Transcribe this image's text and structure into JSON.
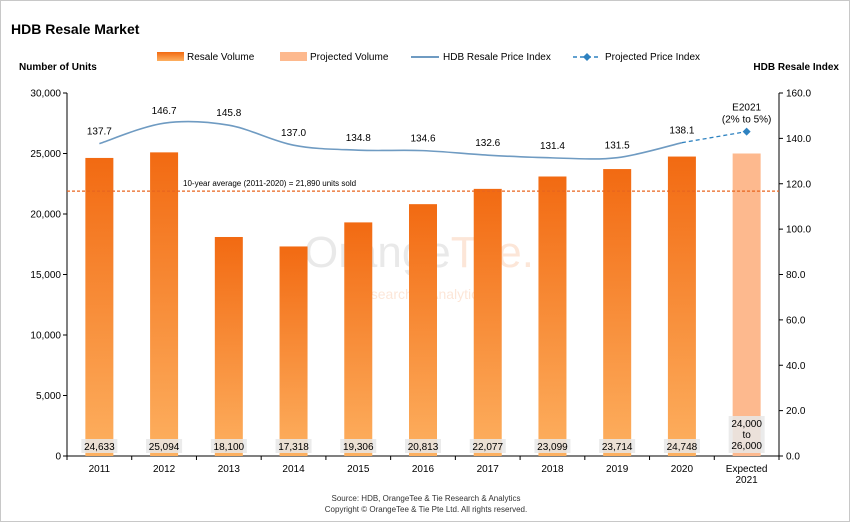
{
  "title": "HDB Resale Market",
  "source_line1": "Source: HDB, OrangeTee & Tie Research & Analytics",
  "source_line2": "Copyright © OrangeTee & Tie Pte Ltd. All rights reserved.",
  "watermark": {
    "brand_main": "Orange",
    "brand_accent": "Tee",
    "brand_dot": ".",
    "tagline": "Research & Analytics"
  },
  "colors": {
    "bar_top": "#f26a12",
    "bar_bottom": "#fdb060",
    "projected_bar": "#fdb98e",
    "line": "#6f9bc2",
    "projected_line": "#2e82c0",
    "avg_line": "#e8651f"
  },
  "chart_data": {
    "type": "bar",
    "categories": [
      "2011",
      "2012",
      "2013",
      "2014",
      "2015",
      "2016",
      "2017",
      "2018",
      "2019",
      "2020",
      "Expected\n2021"
    ],
    "series": [
      {
        "name": "Resale Volume",
        "type": "bar",
        "values": [
          24633,
          25094,
          18100,
          17318,
          19306,
          20813,
          22077,
          23099,
          23714,
          24748,
          null
        ]
      },
      {
        "name": "Projected Volume",
        "type": "bar",
        "values": [
          null,
          null,
          null,
          null,
          null,
          null,
          null,
          null,
          null,
          null,
          25000
        ],
        "range": [
          24000,
          26000
        ]
      },
      {
        "name": "HDB Resale Price Index",
        "type": "line",
        "axis": "right",
        "values": [
          137.7,
          146.7,
          145.8,
          137.0,
          134.8,
          134.6,
          132.6,
          131.4,
          131.5,
          138.1,
          null
        ]
      },
      {
        "name": "Projected Price Index",
        "type": "line",
        "axis": "right",
        "values": [
          null,
          null,
          null,
          null,
          null,
          null,
          null,
          null,
          null,
          138.1,
          143.0
        ]
      }
    ],
    "bar_labels": [
      "24,633",
      "25,094",
      "18,100",
      "17,318",
      "19,306",
      "20,813",
      "22,077",
      "23,099",
      "23,714",
      "24,748",
      "24,000\nto\n26,000"
    ],
    "line_labels": [
      "137.7",
      "146.7",
      "145.8",
      "137.0",
      "134.8",
      "134.6",
      "132.6",
      "131.4",
      "131.5",
      "138.1",
      "E2021\n(2% to 5%)"
    ],
    "ylabel": "Number of Units",
    "y2label": "HDB Resale Index",
    "ylim": [
      0,
      30000
    ],
    "y2lim": [
      0,
      160
    ],
    "yticks": [
      "0",
      "5,000",
      "10,000",
      "15,000",
      "20,000",
      "25,000",
      "30,000"
    ],
    "y2ticks": [
      "0.0",
      "20.0",
      "40.0",
      "60.0",
      "80.0",
      "100.0",
      "120.0",
      "140.0",
      "160.0"
    ],
    "average": {
      "value": 21890,
      "label": "10-year average (2011-2020) = 21,890 units sold"
    },
    "legend_position": "top",
    "grid": false
  }
}
